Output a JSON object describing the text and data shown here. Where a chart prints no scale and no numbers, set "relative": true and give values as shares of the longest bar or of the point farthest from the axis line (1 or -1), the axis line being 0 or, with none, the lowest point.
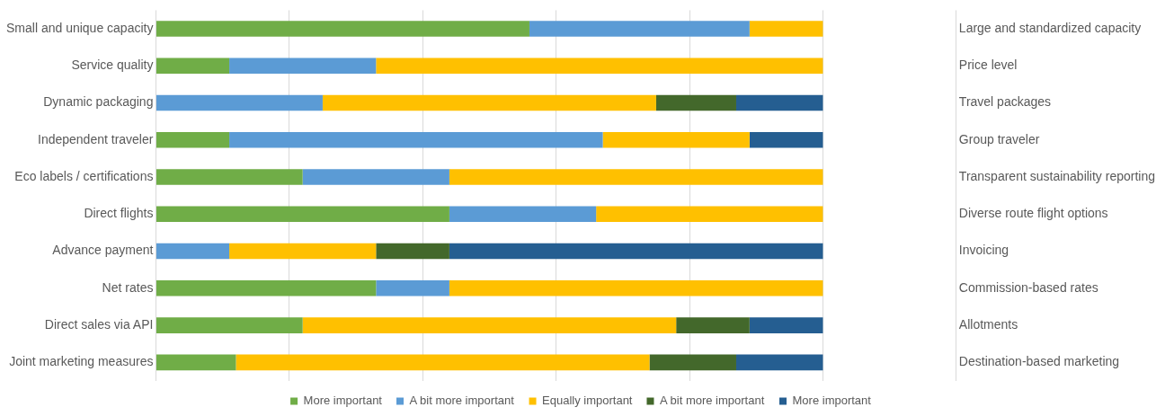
{
  "chart_data": {
    "type": "bar",
    "orientation": "horizontal",
    "stacked": true,
    "relative": true,
    "grid": "x",
    "legend": "bottom",
    "categories": [
      "Small and unique capacity",
      "Service quality",
      "Dynamic packaging",
      "Independent traveler",
      "Eco labels / certifications",
      "Direct flights",
      "Advance payment",
      "Net rates",
      "Direct sales via API",
      "Joint marketing measures"
    ],
    "y2_categories": [
      "Large and standardized capacity",
      "Price level",
      "Travel packages",
      "Group traveler",
      "Transparent sustainability reporting",
      "Diverse route flight options",
      "Invoicing",
      "Commission-based rates",
      "Allotments",
      "Destination-based marketing"
    ],
    "series": [
      {
        "name": "More important",
        "color": "#70ad47",
        "values": [
          0.56,
          0.11,
          0,
          0.11,
          0.22,
          0.44,
          0,
          0.33,
          0.22,
          0.12
        ]
      },
      {
        "name": "A bit more important",
        "color": "#5b9bd5",
        "values": [
          0.33,
          0.22,
          0.25,
          0.56,
          0.22,
          0.22,
          0.11,
          0.11,
          0,
          0
        ]
      },
      {
        "name": "Equally important",
        "color": "#ffc000",
        "values": [
          0.11,
          0.67,
          0.5,
          0.22,
          0.56,
          0.34,
          0.22,
          0.56,
          0.56,
          0.62
        ]
      },
      {
        "name": "A bit more important",
        "color": "#43682b",
        "values": [
          0,
          0,
          0.12,
          0,
          0,
          0,
          0.11,
          0,
          0.11,
          0.13
        ]
      },
      {
        "name": "More important",
        "color": "#255e91",
        "values": [
          0,
          0,
          0.13,
          0.11,
          0,
          0,
          0.56,
          0,
          0.11,
          0.13
        ]
      }
    ]
  }
}
